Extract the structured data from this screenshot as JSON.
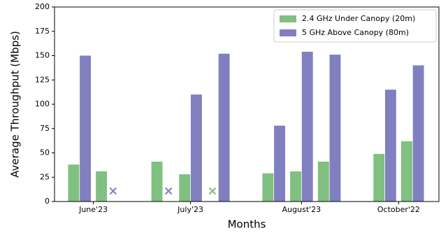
{
  "chart_data": {
    "type": "bar",
    "x": [
      0,
      1,
      3,
      4,
      5,
      7,
      8,
      9,
      11,
      12
    ],
    "series": [
      {
        "name": "2.4 GHz Under Canopy (20m)",
        "color": "#80c080",
        "values": [
          38,
          31,
          41,
          28,
          null,
          29,
          31,
          41,
          49,
          62
        ]
      },
      {
        "name": "5 GHz Above Canopy (80m)",
        "color": "#8080c0",
        "values": [
          150,
          null,
          null,
          110,
          152,
          78,
          154,
          151,
          115,
          140
        ]
      }
    ],
    "xlabel": "Months",
    "ylabel": "Average Throughput (Mbps)",
    "xlim": [
      -0.9,
      12.95
    ],
    "xticks": [
      {
        "value": 0.5,
        "label": "June'23"
      },
      {
        "value": 4,
        "label": "July'23"
      },
      {
        "value": 8,
        "label": "August'23"
      },
      {
        "value": 11.5,
        "label": "October'22"
      }
    ],
    "ylim": [
      0,
      200
    ],
    "yticks": [
      0,
      25,
      50,
      75,
      100,
      125,
      150,
      175,
      200
    ],
    "legend": "upper right",
    "grid": false
  }
}
